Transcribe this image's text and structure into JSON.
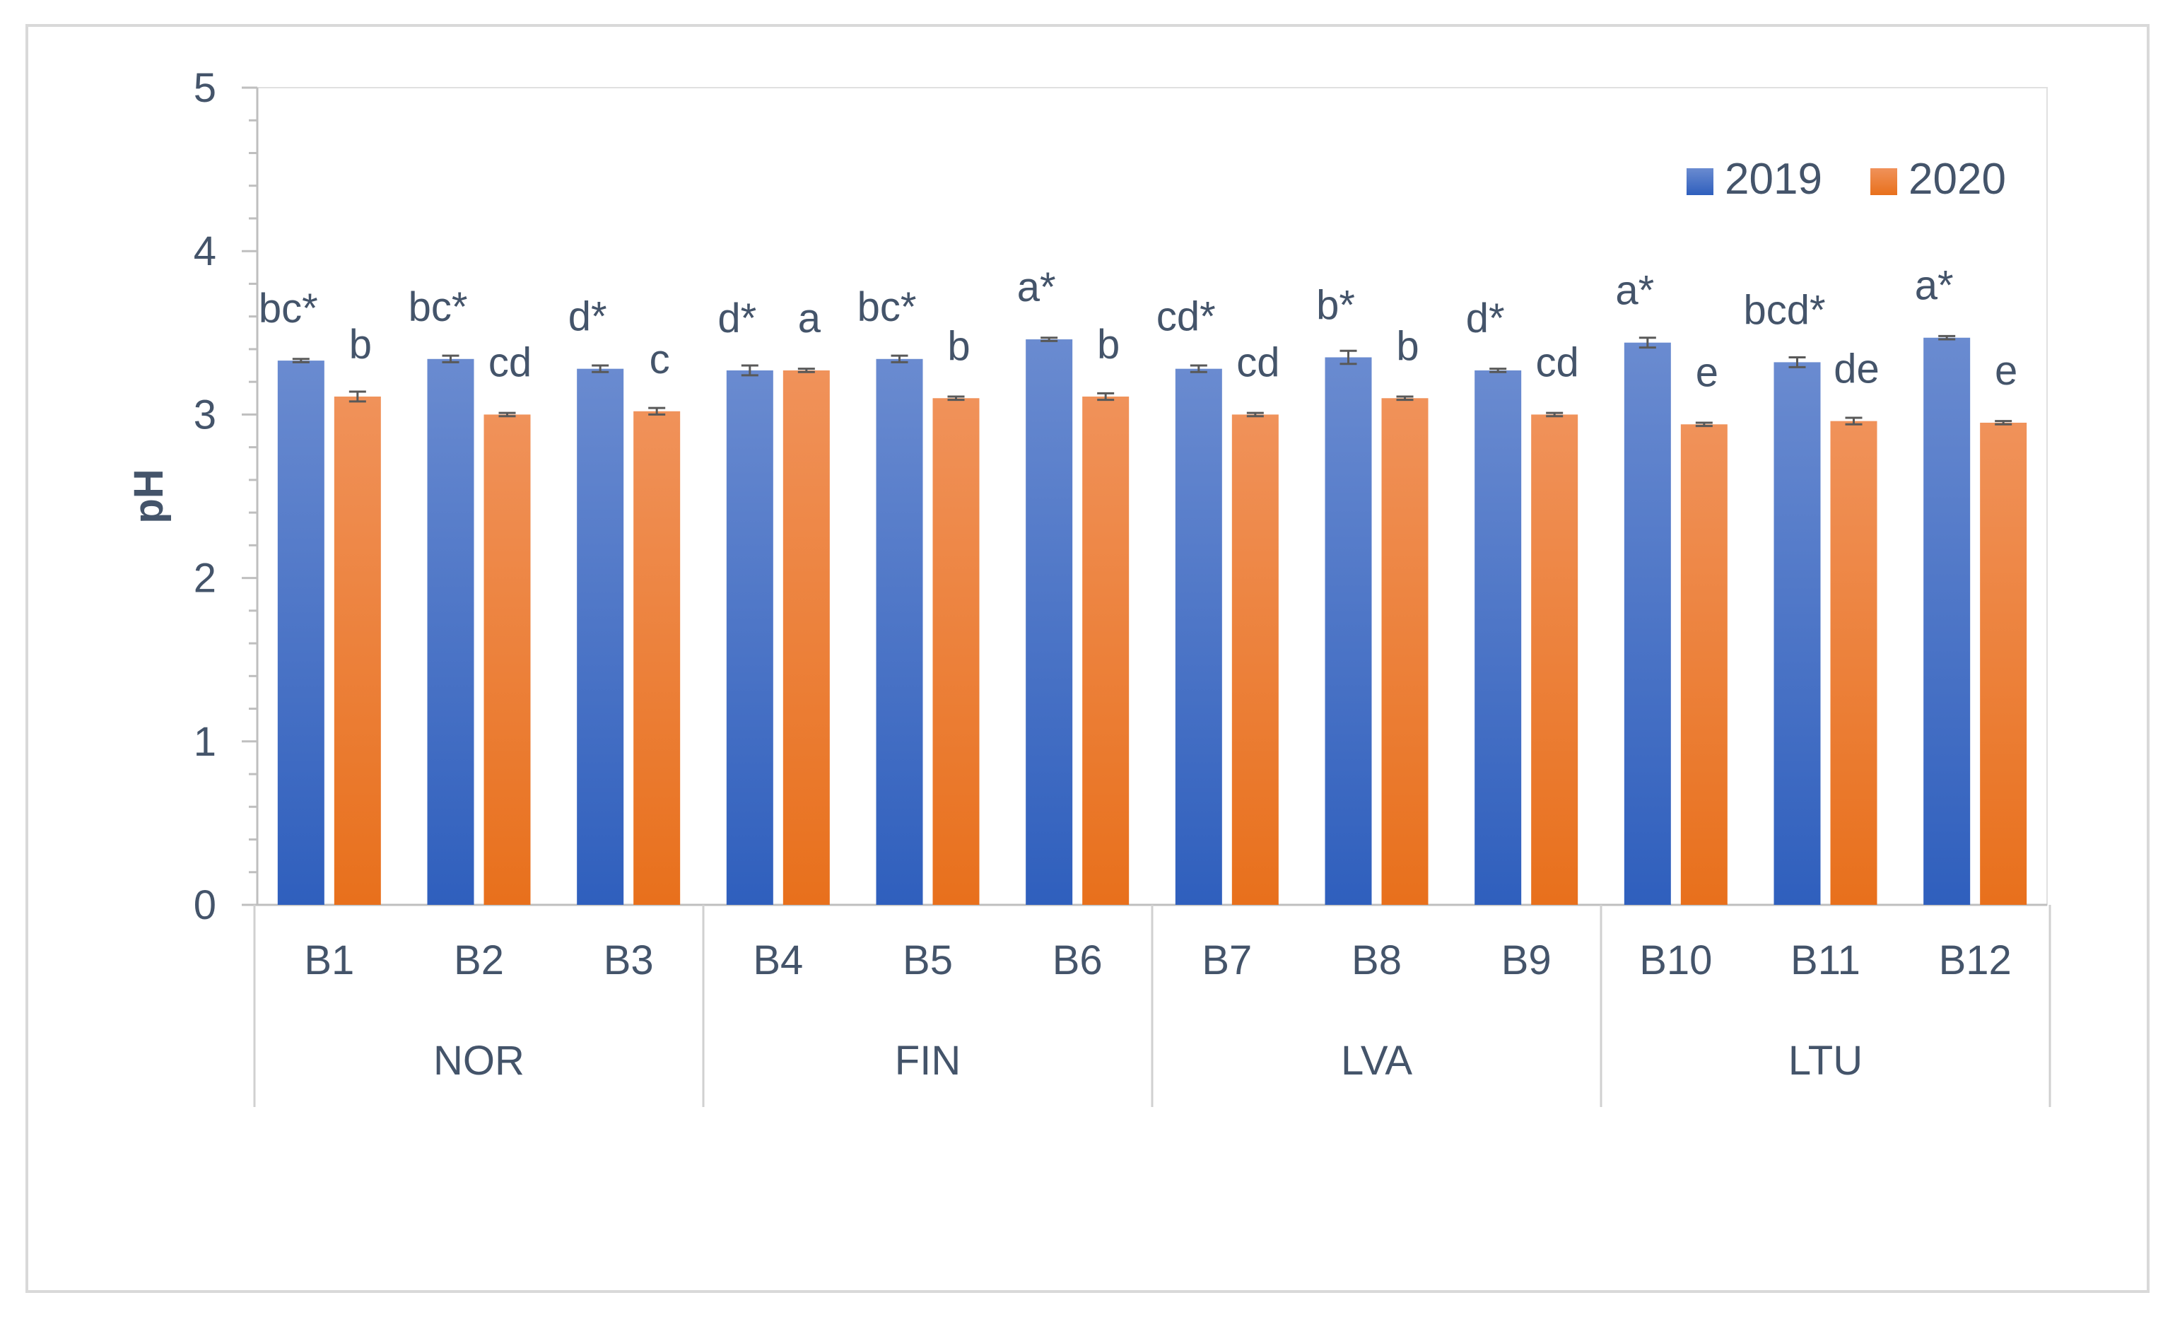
{
  "chart_data": {
    "type": "bar",
    "title": "",
    "xlabel": "",
    "ylabel": "pH",
    "ylim": [
      0,
      5
    ],
    "yticks": [
      "0",
      "1",
      "2",
      "3",
      "4",
      "5"
    ],
    "grid": false,
    "legend_position": "top-right",
    "categories": [
      "B1",
      "B2",
      "B3",
      "B4",
      "B5",
      "B6",
      "B7",
      "B8",
      "B9",
      "B10",
      "B11",
      "B12"
    ],
    "groups": [
      {
        "name": "NOR",
        "members": [
          "B1",
          "B2",
          "B3"
        ]
      },
      {
        "name": "FIN",
        "members": [
          "B4",
          "B5",
          "B6"
        ]
      },
      {
        "name": "LVA",
        "members": [
          "B7",
          "B8",
          "B9"
        ]
      },
      {
        "name": "LTU",
        "members": [
          "B10",
          "B11",
          "B12"
        ]
      }
    ],
    "series": [
      {
        "name": "2019",
        "color": "#4472c4",
        "values": [
          3.33,
          3.34,
          3.28,
          3.27,
          3.34,
          3.46,
          3.28,
          3.35,
          3.27,
          3.44,
          3.32,
          3.47
        ],
        "errors": [
          0.01,
          0.02,
          0.02,
          0.03,
          0.02,
          0.01,
          0.02,
          0.04,
          0.01,
          0.03,
          0.03,
          0.01
        ],
        "labels": [
          "bc*",
          "bc*",
          "d*",
          "d*",
          "bc*",
          "a*",
          "cd*",
          "b*",
          "d*",
          "a*",
          "bcd*",
          "a*"
        ]
      },
      {
        "name": "2020",
        "color": "#ed7d31",
        "values": [
          3.11,
          3.0,
          3.02,
          3.27,
          3.1,
          3.11,
          3.0,
          3.1,
          3.0,
          2.94,
          2.96,
          2.95
        ],
        "errors": [
          0.03,
          0.01,
          0.02,
          0.01,
          0.01,
          0.02,
          0.01,
          0.01,
          0.01,
          0.01,
          0.02,
          0.01
        ],
        "labels": [
          "b",
          "cd",
          "c",
          "a",
          "b",
          "b",
          "cd",
          "b",
          "cd",
          "e",
          "de",
          "e"
        ]
      }
    ]
  }
}
